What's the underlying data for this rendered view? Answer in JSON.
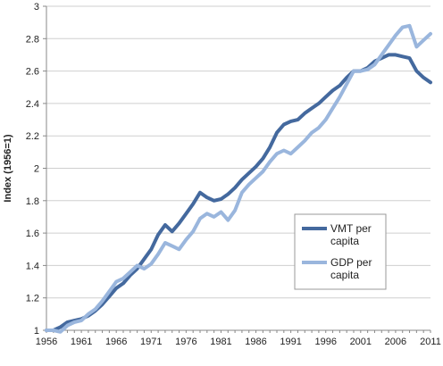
{
  "chart_data": {
    "type": "line",
    "title": "",
    "xlabel": "",
    "ylabel": "Index (1956=1)",
    "xlim": [
      1956,
      2011
    ],
    "ylim": [
      1,
      3
    ],
    "x_ticks": [
      "1956",
      "1961",
      "1966",
      "1971",
      "1976",
      "1981",
      "1986",
      "1991",
      "1996",
      "2001",
      "2006",
      "2011"
    ],
    "y_ticks": [
      "1",
      "1.2",
      "1.4",
      "1.6",
      "1.8",
      "2",
      "2.2",
      "2.4",
      "2.6",
      "2.8",
      "3"
    ],
    "grid": {
      "horizontal": true,
      "vertical": false
    },
    "legend_position": "center-right",
    "series": [
      {
        "name": "VMT per capita",
        "color": "#44699e",
        "x": [
          1956,
          1957,
          1958,
          1959,
          1960,
          1961,
          1962,
          1963,
          1964,
          1965,
          1966,
          1967,
          1968,
          1969,
          1970,
          1971,
          1972,
          1973,
          1974,
          1975,
          1976,
          1977,
          1978,
          1979,
          1980,
          1981,
          1982,
          1983,
          1984,
          1985,
          1986,
          1987,
          1988,
          1989,
          1990,
          1991,
          1992,
          1993,
          1994,
          1995,
          1996,
          1997,
          1998,
          1999,
          2000,
          2001,
          2002,
          2003,
          2004,
          2005,
          2006,
          2007,
          2008,
          2009,
          2010,
          2011
        ],
        "values": [
          1.0,
          1.0,
          1.02,
          1.05,
          1.06,
          1.07,
          1.09,
          1.12,
          1.16,
          1.21,
          1.26,
          1.29,
          1.34,
          1.38,
          1.44,
          1.5,
          1.59,
          1.65,
          1.61,
          1.66,
          1.72,
          1.78,
          1.85,
          1.82,
          1.8,
          1.81,
          1.84,
          1.88,
          1.93,
          1.97,
          2.01,
          2.06,
          2.13,
          2.22,
          2.27,
          2.29,
          2.3,
          2.34,
          2.37,
          2.4,
          2.44,
          2.48,
          2.51,
          2.56,
          2.6,
          2.6,
          2.62,
          2.66,
          2.68,
          2.7,
          2.7,
          2.69,
          2.68,
          2.6,
          2.56,
          2.53
        ]
      },
      {
        "name": "GDP per capita",
        "color": "#9ab6dd",
        "x": [
          1956,
          1957,
          1958,
          1959,
          1960,
          1961,
          1962,
          1963,
          1964,
          1965,
          1966,
          1967,
          1968,
          1969,
          1970,
          1971,
          1972,
          1973,
          1974,
          1975,
          1976,
          1977,
          1978,
          1979,
          1980,
          1981,
          1982,
          1983,
          1984,
          1985,
          1986,
          1987,
          1988,
          1989,
          1990,
          1991,
          1992,
          1993,
          1994,
          1995,
          1996,
          1997,
          1998,
          1999,
          2000,
          2001,
          2002,
          2003,
          2004,
          2005,
          2006,
          2007,
          2008,
          2009,
          2010,
          2011
        ],
        "values": [
          1.0,
          1.0,
          0.99,
          1.03,
          1.05,
          1.06,
          1.1,
          1.13,
          1.18,
          1.24,
          1.3,
          1.32,
          1.36,
          1.4,
          1.38,
          1.41,
          1.47,
          1.54,
          1.52,
          1.5,
          1.56,
          1.61,
          1.69,
          1.72,
          1.7,
          1.73,
          1.68,
          1.74,
          1.85,
          1.9,
          1.94,
          1.98,
          2.04,
          2.09,
          2.11,
          2.09,
          2.13,
          2.17,
          2.22,
          2.25,
          2.3,
          2.37,
          2.44,
          2.52,
          2.6,
          2.6,
          2.61,
          2.64,
          2.7,
          2.76,
          2.82,
          2.87,
          2.88,
          2.75,
          2.79,
          2.83
        ]
      }
    ]
  }
}
